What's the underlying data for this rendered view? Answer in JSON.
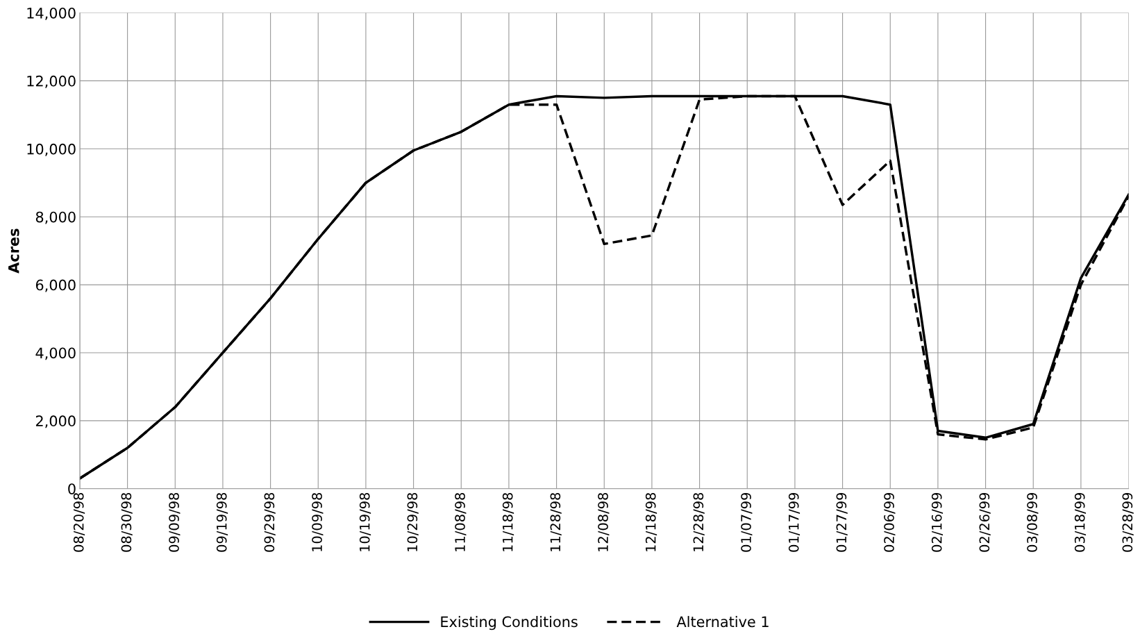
{
  "chart_data": {
    "type": "line",
    "ylabel": "Acres",
    "categories": [
      "08/20/98",
      "08/30/98",
      "09/09/98",
      "09/19/98",
      "09/29/98",
      "10/09/98",
      "10/19/98",
      "10/29/98",
      "11/08/98",
      "11/18/98",
      "11/28/98",
      "12/08/98",
      "12/18/98",
      "12/28/98",
      "01/07/99",
      "01/17/99",
      "01/27/99",
      "02/06/99",
      "02/16/99",
      "02/26/99",
      "03/08/99",
      "03/18/99",
      "03/28/99"
    ],
    "series": [
      {
        "name": "Existing Conditions",
        "color": "#000000",
        "line_style": "solid",
        "values": [
          300,
          1200,
          2400,
          4000,
          5600,
          7350,
          9000,
          9950,
          10500,
          11300,
          11550,
          11500,
          11550,
          11550,
          11550,
          11550,
          11550,
          11300,
          1700,
          1500,
          1900,
          6200,
          8650
        ]
      },
      {
        "name": "Alternative 1",
        "color": "#000000",
        "line_style": "dashed",
        "values": [
          300,
          1200,
          2400,
          4000,
          5600,
          7350,
          9000,
          9950,
          10500,
          11300,
          11300,
          7200,
          7450,
          11450,
          11550,
          11550,
          8350,
          9650,
          1600,
          1450,
          1800,
          6000,
          8600
        ]
      }
    ],
    "ylim": [
      0,
      14000
    ],
    "yticks": [
      0,
      {
        "value": 2000,
        "label": "2,000"
      },
      {
        "value": 4000,
        "label": "4,000"
      },
      {
        "value": 6000,
        "label": "6,000"
      },
      {
        "value": 8000,
        "label": "8,000"
      },
      {
        "value": 10000,
        "label": "10,000"
      },
      {
        "value": 12000,
        "label": "12,000"
      },
      {
        "value": 14000,
        "label": "14,000"
      }
    ],
    "grid": true,
    "legend": "bottom",
    "marker": "none"
  }
}
